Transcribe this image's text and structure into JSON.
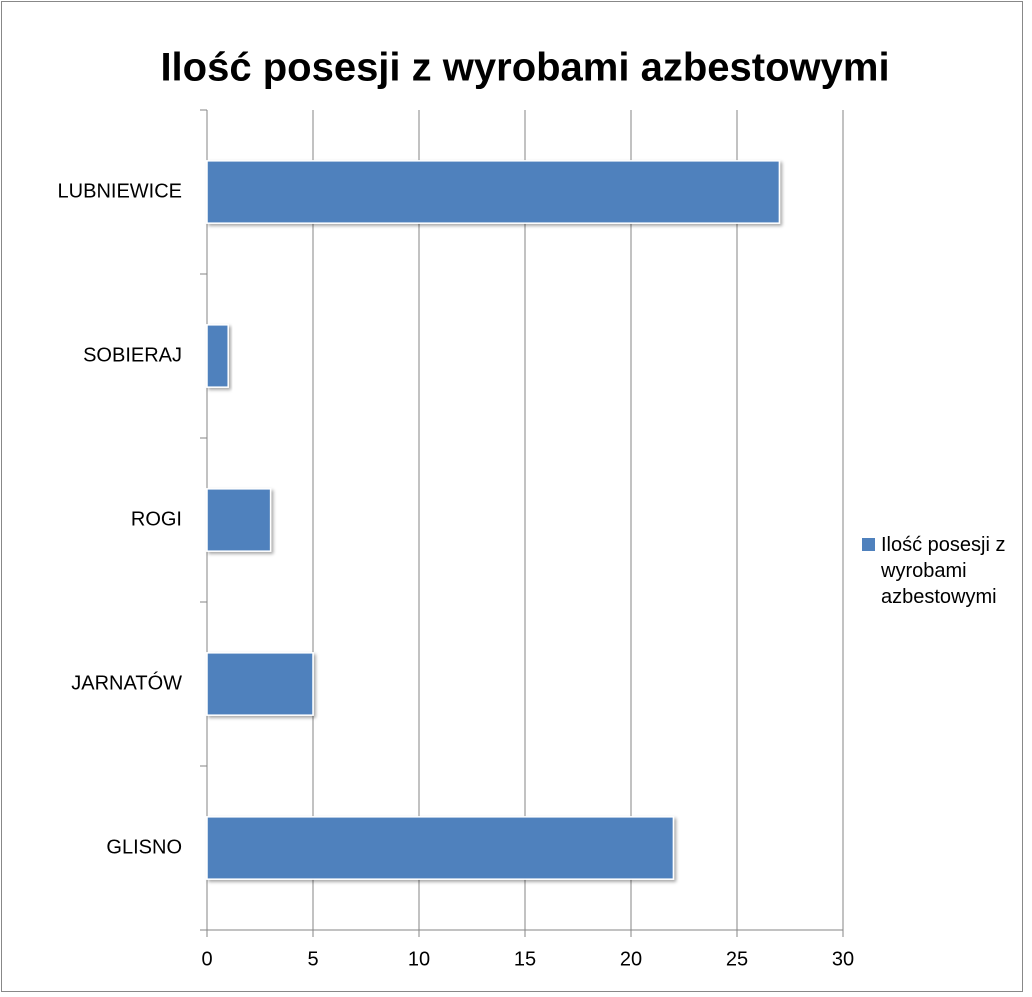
{
  "chart_data": {
    "type": "bar",
    "orientation": "horizontal",
    "title": "Ilość posesji z wyrobami azbestowymi",
    "categories": [
      "GLISNO",
      "JARNATÓW",
      "ROGI",
      "SOBIERAJ",
      "LUBNIEWICE"
    ],
    "series": [
      {
        "name": "Ilość posesji z wyrobami azbestowymi",
        "color": "#4f81bd",
        "values": [
          22,
          5,
          3,
          1,
          27
        ]
      }
    ],
    "xlim": [
      0,
      30
    ],
    "xticks": [
      0,
      5,
      10,
      15,
      20,
      25,
      30
    ],
    "grid": true,
    "legend": "right"
  }
}
